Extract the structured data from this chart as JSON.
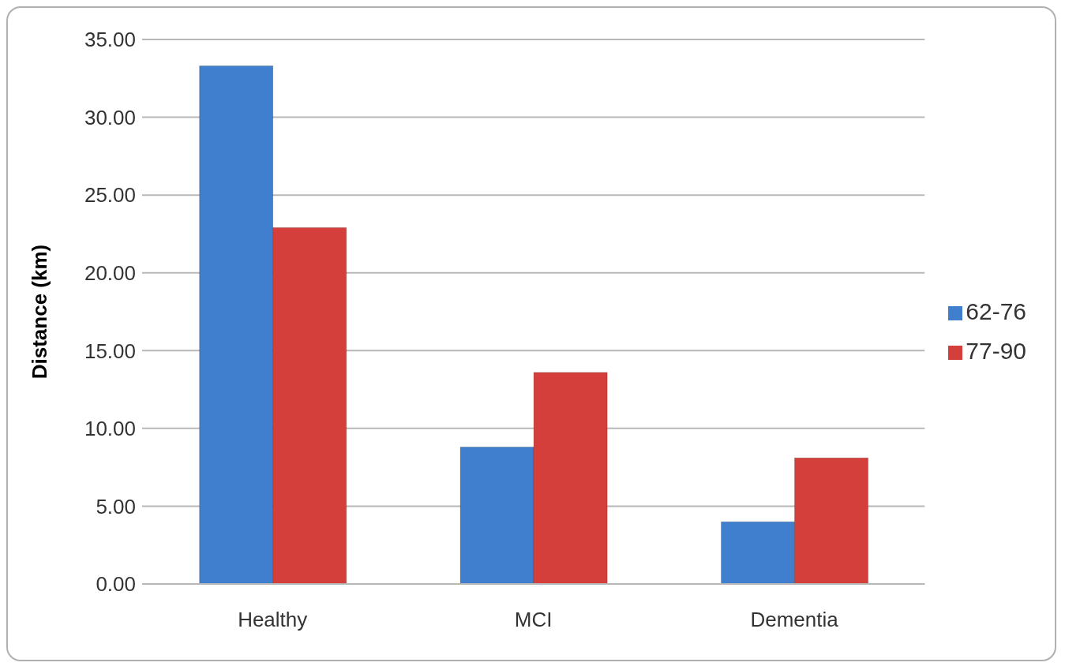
{
  "chart_data": {
    "type": "bar",
    "categories": [
      "Healthy",
      "MCI",
      "Dementia"
    ],
    "ylabel": "Distance (km)",
    "series": [
      {
        "name": "62-76",
        "color": "#3f7fce",
        "values": [
          33.3,
          8.8,
          4.0
        ]
      },
      {
        "name": "77-90",
        "color": "#d43f3c",
        "values": [
          22.9,
          13.6,
          8.1
        ]
      }
    ],
    "ylim": [
      0,
      35
    ],
    "yticks": [
      {
        "value": 0,
        "label": "0.00"
      },
      {
        "value": 5,
        "label": "5.00"
      },
      {
        "value": 10,
        "label": "10.00"
      },
      {
        "value": 15,
        "label": "15.00"
      },
      {
        "value": 20,
        "label": "20.00"
      },
      {
        "value": 25,
        "label": "25.00"
      },
      {
        "value": 30,
        "label": "30.00"
      },
      {
        "value": 35,
        "label": "35.00"
      }
    ],
    "grid": "y",
    "legend": "right"
  }
}
